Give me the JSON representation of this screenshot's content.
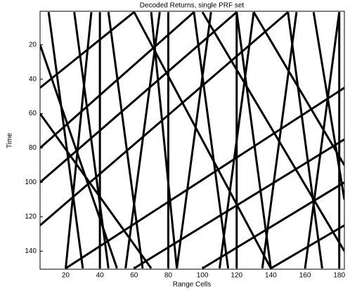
{
  "chart_data": {
    "type": "image",
    "title": "Decoded Returns, single PRF set",
    "x_label": "Range Cells",
    "y_label": "Time",
    "xlim": [
      5,
      183
    ],
    "ylim": [
      0.5,
      150.5
    ],
    "y_reversed": true,
    "xticks": [
      20,
      40,
      60,
      80,
      100,
      120,
      140,
      160,
      180
    ],
    "yticks": [
      20,
      40,
      60,
      80,
      100,
      120,
      140
    ],
    "color": "#000000",
    "segments": [
      [
        5,
        45,
        60,
        1
      ],
      [
        5,
        80,
        95,
        1
      ],
      [
        5,
        125,
        150,
        1
      ],
      [
        20,
        150,
        183,
        45
      ],
      [
        60,
        150,
        183,
        75
      ],
      [
        100,
        150,
        183,
        100
      ],
      [
        140,
        150,
        183,
        125
      ],
      [
        5,
        100,
        120,
        1
      ],
      [
        10,
        1,
        30,
        150
      ],
      [
        25,
        1,
        45,
        150
      ],
      [
        45,
        1,
        65,
        150
      ],
      [
        70,
        1,
        85,
        150
      ],
      [
        95,
        1,
        115,
        150
      ],
      [
        120,
        1,
        140,
        150
      ],
      [
        150,
        1,
        170,
        150
      ],
      [
        165,
        1,
        183,
        110
      ],
      [
        20,
        150,
        35,
        1
      ],
      [
        55,
        150,
        75,
        1
      ],
      [
        85,
        150,
        105,
        1
      ],
      [
        110,
        150,
        130,
        1
      ],
      [
        135,
        150,
        155,
        1
      ],
      [
        160,
        150,
        180,
        1
      ],
      [
        40,
        1,
        40,
        150
      ],
      [
        80,
        1,
        80,
        150
      ],
      [
        120,
        1,
        120,
        150
      ],
      [
        180,
        1,
        180,
        150
      ],
      [
        5,
        60,
        70,
        150
      ],
      [
        60,
        1,
        140,
        150
      ],
      [
        100,
        1,
        183,
        140
      ],
      [
        5,
        20,
        50,
        150
      ],
      [
        130,
        1,
        183,
        90
      ]
    ]
  }
}
